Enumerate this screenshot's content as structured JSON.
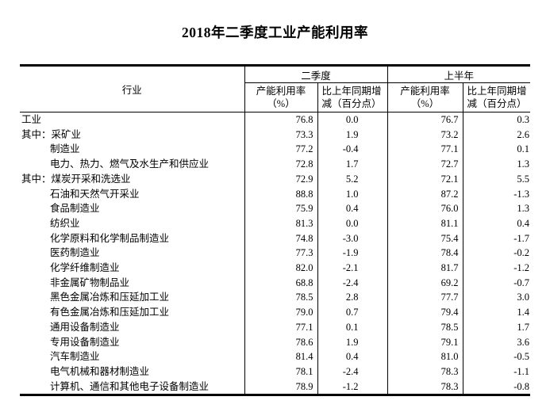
{
  "title": "2018年二季度工业产能利用率",
  "table": {
    "industry_header": "行业",
    "group_headers": {
      "q2": "二季度",
      "h1": "上半年"
    },
    "sub_headers": {
      "util_l1": "产能利用率",
      "util_l2": "（%）",
      "chg_l1": "比上年同期增",
      "chg_l2": "减（百分点）"
    },
    "rows": [
      {
        "label": "工业",
        "indent": 0,
        "q2_util": "76.8",
        "q2_chg": "0.0",
        "h1_util": "76.7",
        "h1_chg": "0.3"
      },
      {
        "label": "其中：采矿业",
        "indent": 0,
        "q2_util": "73.3",
        "q2_chg": "1.9",
        "h1_util": "73.2",
        "h1_chg": "2.6"
      },
      {
        "label": "制造业",
        "indent": 1,
        "q2_util": "77.2",
        "q2_chg": "-0.4",
        "h1_util": "77.1",
        "h1_chg": "0.1"
      },
      {
        "label": "电力、热力、燃气及水生产和供应业",
        "indent": 1,
        "q2_util": "72.8",
        "q2_chg": "1.7",
        "h1_util": "72.7",
        "h1_chg": "1.3"
      },
      {
        "label": "其中：煤炭开采和洗选业",
        "indent": 0,
        "q2_util": "72.9",
        "q2_chg": "5.2",
        "h1_util": "72.1",
        "h1_chg": "5.5"
      },
      {
        "label": "石油和天然气开采业",
        "indent": 1,
        "q2_util": "88.8",
        "q2_chg": "1.0",
        "h1_util": "87.2",
        "h1_chg": "-1.3"
      },
      {
        "label": "食品制造业",
        "indent": 1,
        "q2_util": "75.9",
        "q2_chg": "0.4",
        "h1_util": "76.0",
        "h1_chg": "1.3"
      },
      {
        "label": "纺织业",
        "indent": 1,
        "q2_util": "81.3",
        "q2_chg": "0.0",
        "h1_util": "81.1",
        "h1_chg": "0.4"
      },
      {
        "label": "化学原料和化学制品制造业",
        "indent": 1,
        "q2_util": "74.8",
        "q2_chg": "-3.0",
        "h1_util": "75.4",
        "h1_chg": "-1.7"
      },
      {
        "label": "医药制造业",
        "indent": 1,
        "q2_util": "77.3",
        "q2_chg": "-1.9",
        "h1_util": "78.4",
        "h1_chg": "-0.2"
      },
      {
        "label": "化学纤维制造业",
        "indent": 1,
        "q2_util": "82.0",
        "q2_chg": "-2.1",
        "h1_util": "81.7",
        "h1_chg": "-1.2"
      },
      {
        "label": "非金属矿物制品业",
        "indent": 1,
        "q2_util": "68.8",
        "q2_chg": "-2.4",
        "h1_util": "69.2",
        "h1_chg": "-0.7"
      },
      {
        "label": "黑色金属冶炼和压延加工业",
        "indent": 1,
        "q2_util": "78.5",
        "q2_chg": "2.8",
        "h1_util": "77.7",
        "h1_chg": "3.0"
      },
      {
        "label": "有色金属冶炼和压延加工业",
        "indent": 1,
        "q2_util": "79.0",
        "q2_chg": "0.7",
        "h1_util": "79.4",
        "h1_chg": "1.4"
      },
      {
        "label": "通用设备制造业",
        "indent": 1,
        "q2_util": "77.1",
        "q2_chg": "0.1",
        "h1_util": "78.5",
        "h1_chg": "1.7"
      },
      {
        "label": "专用设备制造业",
        "indent": 1,
        "q2_util": "78.6",
        "q2_chg": "1.9",
        "h1_util": "79.1",
        "h1_chg": "3.6"
      },
      {
        "label": "汽车制造业",
        "indent": 1,
        "q2_util": "81.4",
        "q2_chg": "0.4",
        "h1_util": "81.0",
        "h1_chg": "-0.5"
      },
      {
        "label": "电气机械和器材制造业",
        "indent": 1,
        "q2_util": "78.1",
        "q2_chg": "-2.4",
        "h1_util": "78.3",
        "h1_chg": "-1.1"
      },
      {
        "label": "计算机、通信和其他电子设备制造业",
        "indent": 1,
        "q2_util": "78.9",
        "q2_chg": "-1.2",
        "h1_util": "78.3",
        "h1_chg": "-0.8"
      }
    ]
  }
}
